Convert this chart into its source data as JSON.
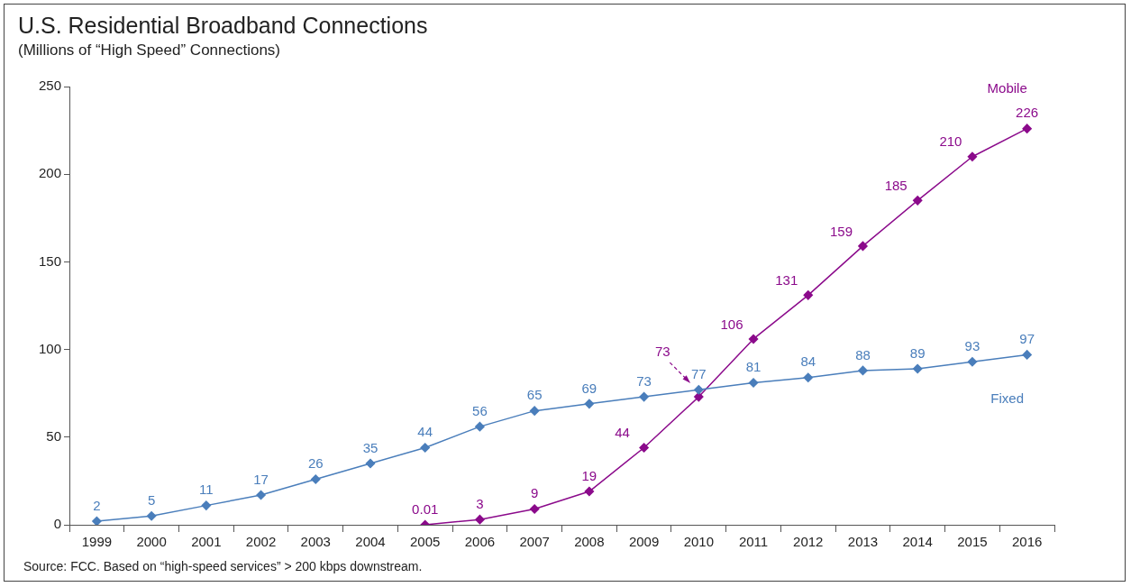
{
  "chart_data": {
    "type": "line",
    "title": "U.S. Residential Broadband Connections",
    "subtitle": "(Millions of “High Speed” Connections)",
    "categories": [
      "1999",
      "2000",
      "2001",
      "2002",
      "2003",
      "2004",
      "2005",
      "2006",
      "2007",
      "2008",
      "2009",
      "2010",
      "2011",
      "2012",
      "2013",
      "2014",
      "2015",
      "2016"
    ],
    "series": [
      {
        "name": "Fixed",
        "color": "#4a7ebb",
        "values": [
          2,
          5,
          11,
          17,
          26,
          35,
          44,
          56,
          65,
          69,
          73,
          77,
          81,
          84,
          88,
          89,
          93,
          97
        ]
      },
      {
        "name": "Mobile",
        "color": "#8b0a8b",
        "values": [
          null,
          null,
          null,
          null,
          null,
          null,
          0.01,
          3,
          9,
          19,
          44,
          73,
          106,
          131,
          159,
          185,
          210,
          226
        ]
      }
    ],
    "ylim": [
      0,
      250
    ],
    "yticks": [
      0,
      50,
      100,
      150,
      200,
      250
    ],
    "grid": false,
    "legend": false,
    "marker": "diamond",
    "line_style": "solid",
    "data_labels": true,
    "annotations": [
      "Source:  FCC.  Based on “high-speed services” > 200 kbps downstream."
    ]
  }
}
